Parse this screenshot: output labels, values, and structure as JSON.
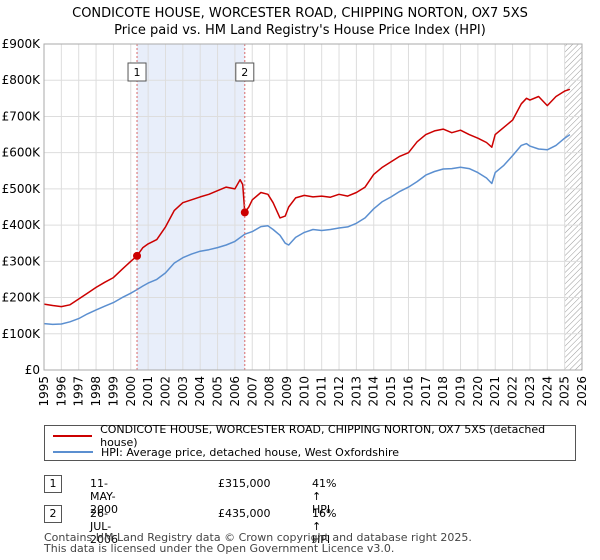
{
  "title_line1": "CONDICOTE HOUSE, WORCESTER ROAD, CHIPPING NORTON, OX7 5XS",
  "title_line2": "Price paid vs. HM Land Registry's House Price Index (HPI)",
  "colors": {
    "property": "#cc0000",
    "hpi": "#5b8fd0",
    "shade": "#e8eefa",
    "grid": "#dddddd",
    "marker_line": "#d96a6a"
  },
  "chart_data": {
    "type": "line",
    "title": "CONDICOTE HOUSE, WORCESTER ROAD, CHIPPING NORTON, OX7 5XS — Price paid vs. HM Land Registry's House Price Index (HPI)",
    "xlabel": "",
    "ylabel": "",
    "xlim": [
      1995,
      2026
    ],
    "ylim": [
      0,
      900000
    ],
    "y_ticks": [
      0,
      100000,
      200000,
      300000,
      400000,
      500000,
      600000,
      700000,
      800000,
      900000
    ],
    "y_tick_labels": [
      "£0",
      "£100K",
      "£200K",
      "£300K",
      "£400K",
      "£500K",
      "£600K",
      "£700K",
      "£800K",
      "£900K"
    ],
    "x_ticks": [
      1995,
      1996,
      1997,
      1998,
      1999,
      2000,
      2001,
      2002,
      2003,
      2004,
      2005,
      2006,
      2007,
      2008,
      2009,
      2010,
      2011,
      2012,
      2013,
      2014,
      2015,
      2016,
      2017,
      2018,
      2019,
      2020,
      2021,
      2022,
      2023,
      2024,
      2025,
      2026
    ],
    "grid": true,
    "shaded_span": [
      2000.36,
      2006.57
    ],
    "hatched_from": 2025.0,
    "series": [
      {
        "name": "CONDICOTE HOUSE, WORCESTER ROAD, CHIPPING NORTON, OX7 5XS (detached house)",
        "color": "#cc0000",
        "x": [
          1995.0,
          1995.5,
          1996.0,
          1996.5,
          1997.0,
          1997.5,
          1998.0,
          1998.5,
          1999.0,
          1999.5,
          2000.0,
          2000.36,
          2000.7,
          2001.0,
          2001.5,
          2002.0,
          2002.5,
          2003.0,
          2003.5,
          2004.0,
          2004.5,
          2005.0,
          2005.5,
          2006.0,
          2006.3,
          2006.45,
          2006.57,
          2006.8,
          2007.0,
          2007.5,
          2007.9,
          2008.2,
          2008.6,
          2008.9,
          2009.1,
          2009.5,
          2010.0,
          2010.5,
          2011.0,
          2011.5,
          2012.0,
          2012.5,
          2013.0,
          2013.5,
          2014.0,
          2014.5,
          2015.0,
          2015.5,
          2016.0,
          2016.5,
          2017.0,
          2017.5,
          2018.0,
          2018.5,
          2019.0,
          2019.5,
          2020.0,
          2020.5,
          2020.8,
          2021.0,
          2021.5,
          2022.0,
          2022.5,
          2022.8,
          2023.0,
          2023.5,
          2024.0,
          2024.5,
          2025.0,
          2025.3
        ],
        "y": [
          182000,
          178000,
          175000,
          180000,
          196000,
          212000,
          228000,
          242000,
          255000,
          278000,
          300000,
          315000,
          338000,
          348000,
          360000,
          395000,
          440000,
          462000,
          470000,
          478000,
          485000,
          495000,
          505000,
          500000,
          525000,
          512000,
          435000,
          450000,
          470000,
          490000,
          485000,
          462000,
          420000,
          425000,
          450000,
          475000,
          482000,
          478000,
          480000,
          477000,
          485000,
          480000,
          490000,
          505000,
          540000,
          560000,
          575000,
          590000,
          600000,
          630000,
          650000,
          660000,
          665000,
          655000,
          662000,
          650000,
          640000,
          628000,
          615000,
          650000,
          670000,
          690000,
          735000,
          750000,
          745000,
          755000,
          730000,
          755000,
          770000,
          775000
        ]
      },
      {
        "name": "HPI: Average price, detached house, West Oxfordshire",
        "color": "#5b8fd0",
        "x": [
          1995.0,
          1995.5,
          1996.0,
          1996.5,
          1997.0,
          1997.5,
          1998.0,
          1998.5,
          1999.0,
          1999.5,
          2000.0,
          2000.36,
          2000.7,
          2001.0,
          2001.5,
          2002.0,
          2002.5,
          2003.0,
          2003.5,
          2004.0,
          2004.5,
          2005.0,
          2005.5,
          2006.0,
          2006.57,
          2007.0,
          2007.5,
          2007.9,
          2008.2,
          2008.6,
          2008.9,
          2009.1,
          2009.5,
          2010.0,
          2010.5,
          2011.0,
          2011.5,
          2012.0,
          2012.5,
          2013.0,
          2013.5,
          2014.0,
          2014.5,
          2015.0,
          2015.5,
          2016.0,
          2016.5,
          2017.0,
          2017.5,
          2018.0,
          2018.5,
          2019.0,
          2019.5,
          2020.0,
          2020.5,
          2020.8,
          2021.0,
          2021.5,
          2022.0,
          2022.5,
          2022.8,
          2023.0,
          2023.5,
          2024.0,
          2024.5,
          2025.0,
          2025.3
        ],
        "y": [
          128000,
          126000,
          127000,
          133000,
          142000,
          155000,
          166000,
          176000,
          186000,
          200000,
          212000,
          222000,
          232000,
          240000,
          250000,
          268000,
          295000,
          310000,
          320000,
          328000,
          332000,
          338000,
          345000,
          355000,
          375000,
          382000,
          396000,
          398000,
          388000,
          372000,
          350000,
          345000,
          366000,
          380000,
          388000,
          385000,
          388000,
          392000,
          395000,
          405000,
          420000,
          445000,
          465000,
          478000,
          493000,
          505000,
          520000,
          538000,
          548000,
          555000,
          556000,
          560000,
          556000,
          545000,
          530000,
          515000,
          545000,
          565000,
          592000,
          620000,
          625000,
          618000,
          610000,
          608000,
          620000,
          640000,
          650000
        ]
      }
    ],
    "annotations": [
      {
        "label": "1",
        "x": 2000.36,
        "y": 315000
      },
      {
        "label": "2",
        "x": 2006.57,
        "y": 435000
      }
    ]
  },
  "legend": {
    "property": "CONDICOTE HOUSE, WORCESTER ROAD, CHIPPING NORTON, OX7 5XS (detached house)",
    "hpi": "HPI: Average price, detached house, West Oxfordshire"
  },
  "sales": [
    {
      "num": "1",
      "date": "11-MAY-2000",
      "price": "£315,000",
      "hpi": "41% ↑ HPI"
    },
    {
      "num": "2",
      "date": "26-JUL-2006",
      "price": "£435,000",
      "hpi": "16% ↑ HPI"
    }
  ],
  "footer_line1": "Contains HM Land Registry data © Crown copyright and database right 2025.",
  "footer_line2": "This data is licensed under the Open Government Licence v3.0."
}
